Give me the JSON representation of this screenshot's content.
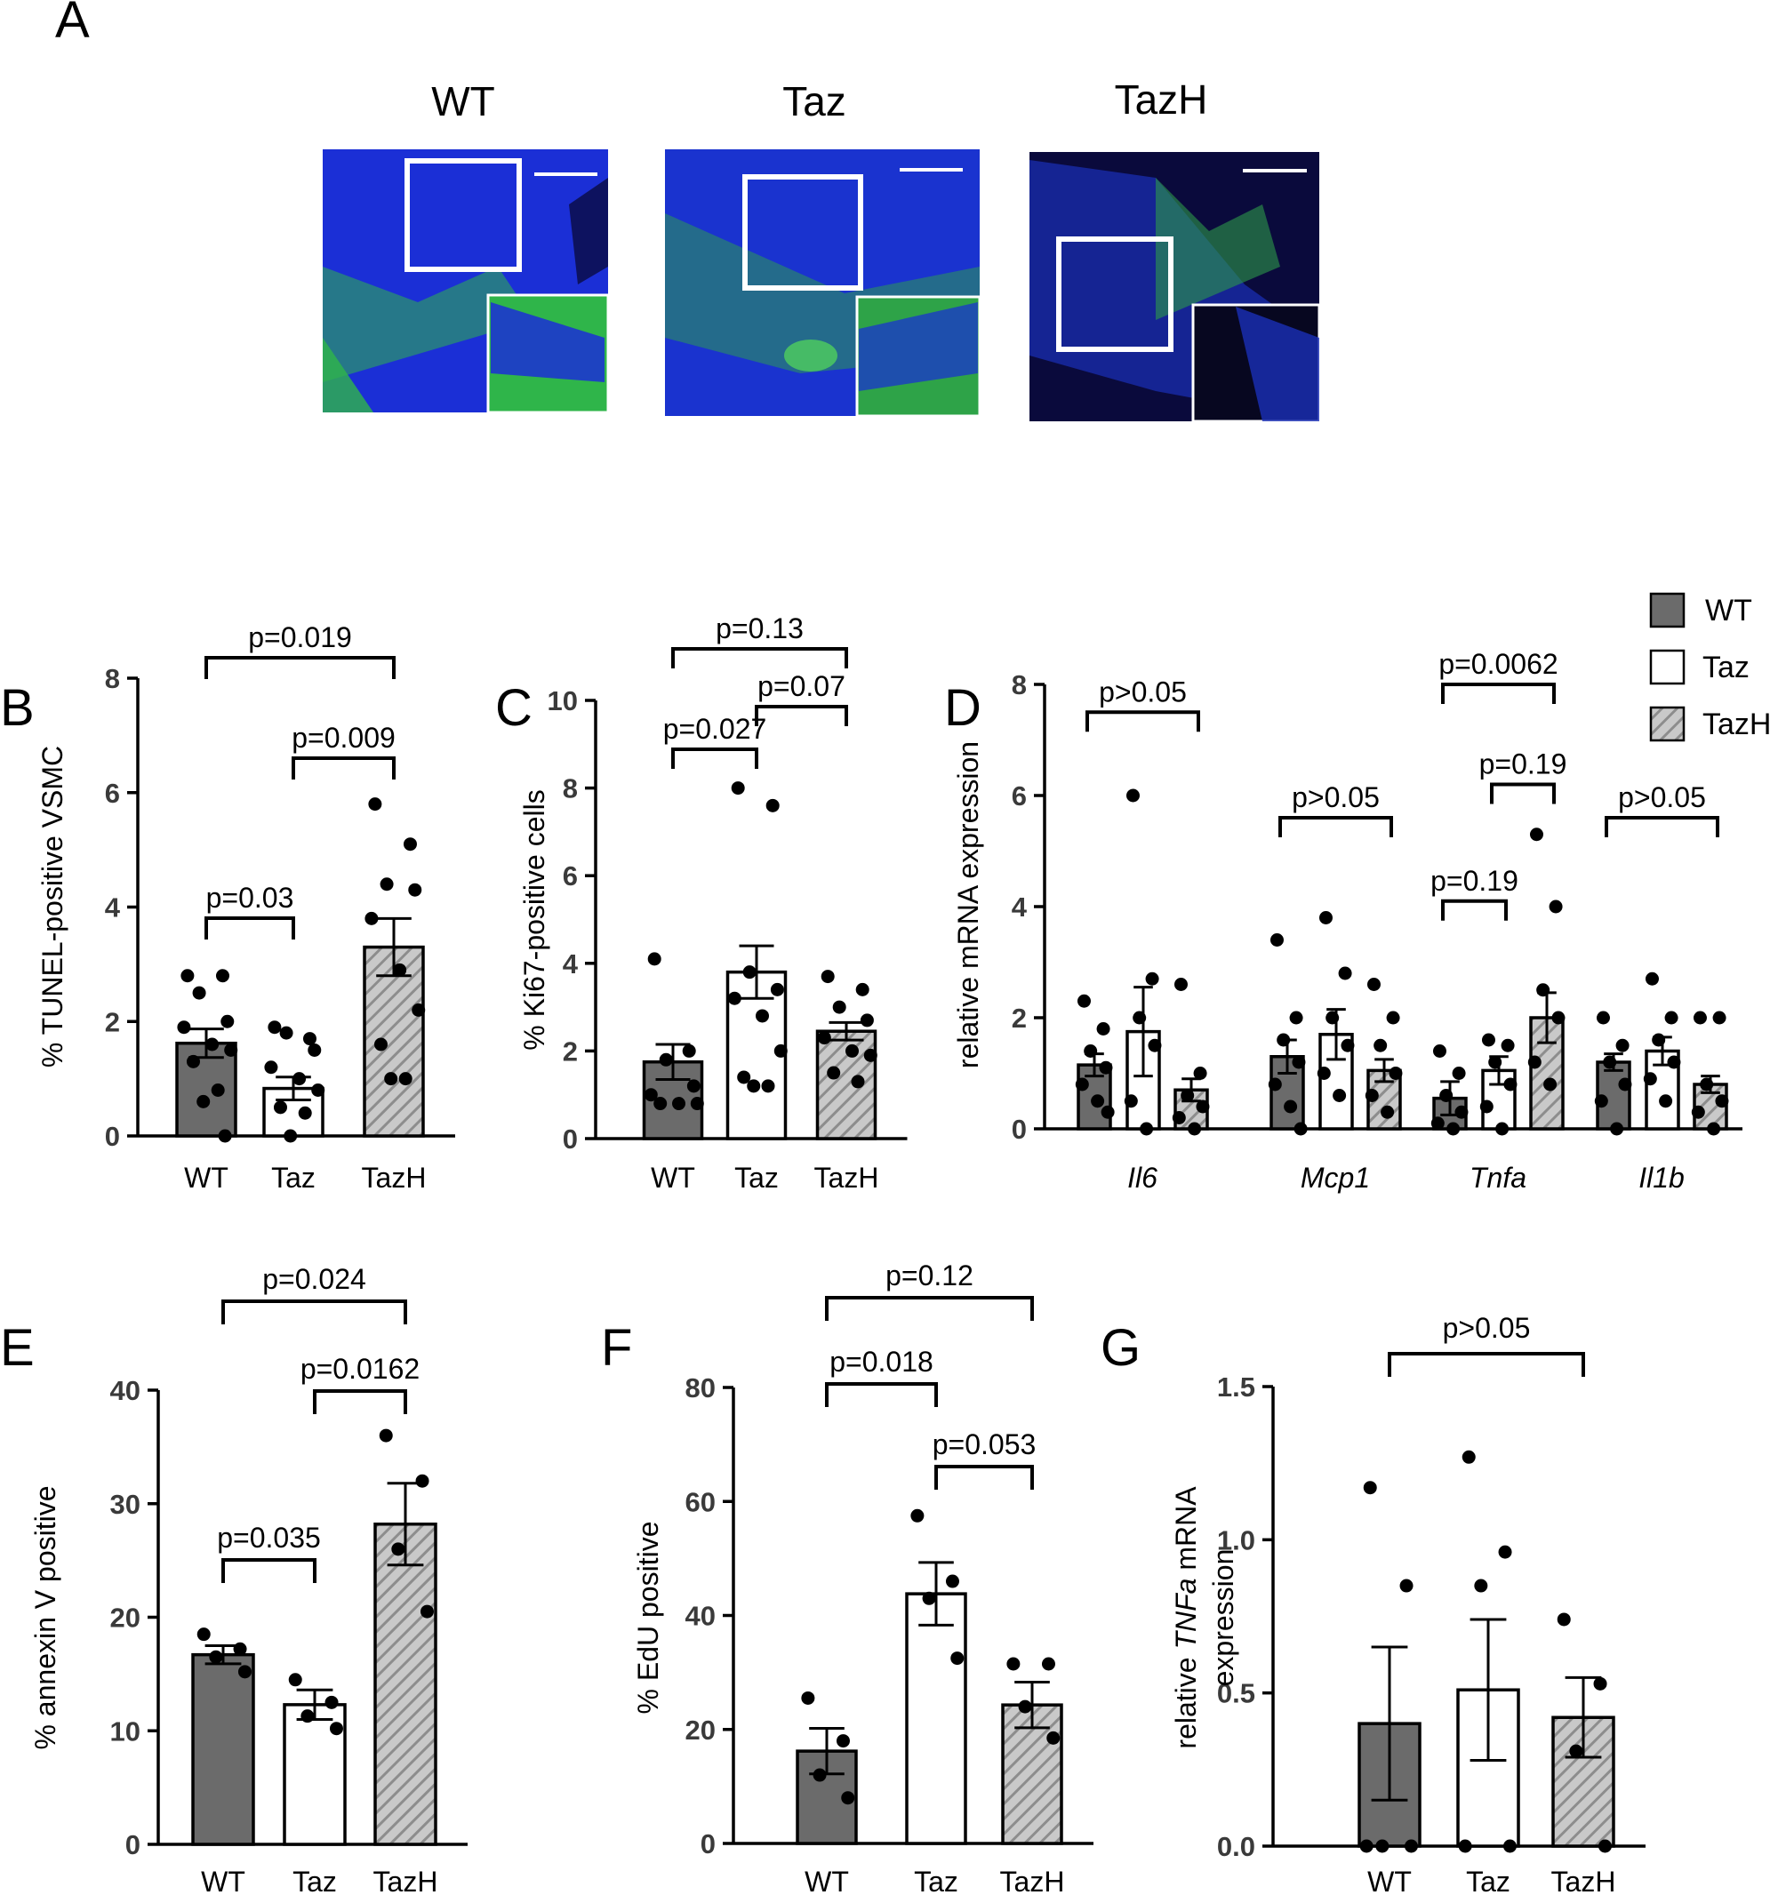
{
  "panel_a": {
    "letter": "A",
    "images": [
      {
        "label": "WT",
        "desc": "WT micrograph",
        "primary": "#1b2fd6",
        "secondary": "#2fb54a"
      },
      {
        "label": "Taz",
        "desc": "Taz micrograph",
        "primary": "#1a33cf",
        "secondary": "#2ea348"
      },
      {
        "label": "TazH",
        "desc": "TazH micrograph",
        "primary": "#0a0a3c",
        "secondary": "#2d9a4a"
      }
    ]
  },
  "legend": {
    "items": [
      {
        "label": "WT",
        "style": "dark"
      },
      {
        "label": "Taz",
        "style": "white"
      },
      {
        "label": "TazH",
        "style": "hatched"
      }
    ]
  },
  "styles": {
    "dark": "#6b6b6b",
    "white": "#ffffff",
    "hatch_bg": "#c9c9c9",
    "hatch_line": "#8d8d8d",
    "ink": "#000000"
  },
  "chart_data": [
    {
      "letter": "B",
      "type": "bar",
      "categories": [
        "WT",
        "Taz",
        "TazH"
      ],
      "styles": [
        "dark",
        "white",
        "hatched"
      ],
      "ylabel": "% TUNEL-positive VSMC",
      "ylim": [
        0,
        8
      ],
      "yticks": [
        "0",
        "2",
        "4",
        "6",
        "8"
      ],
      "values": [
        1.62,
        0.83,
        3.3
      ],
      "sem": [
        0.25,
        0.2,
        0.5
      ],
      "points": [
        [
          2.8,
          2.8,
          2.5,
          2.0,
          1.9,
          1.6,
          1.5,
          1.3,
          0.8,
          0.6,
          0.0
        ],
        [
          1.9,
          1.7,
          1.8,
          1.5,
          1.2,
          1.0,
          0.8,
          0.5,
          0.4,
          0.0
        ],
        [
          5.8,
          5.1,
          4.4,
          4.3,
          3.8,
          2.9,
          2.2,
          1.6,
          1.0,
          1.0
        ]
      ],
      "comparisons": [
        {
          "from": 0,
          "to": 2,
          "label": "p=0.019"
        },
        {
          "from": 1,
          "to": 2,
          "label": "p=0.009"
        },
        {
          "from": 0,
          "to": 1,
          "label": "p=0.03"
        }
      ]
    },
    {
      "letter": "C",
      "type": "bar",
      "categories": [
        "WT",
        "Taz",
        "TazH"
      ],
      "styles": [
        "dark",
        "white",
        "hatched"
      ],
      "ylabel": "% Ki67-positive cells",
      "ylim": [
        0,
        10
      ],
      "yticks": [
        "0",
        "2",
        "4",
        "6",
        "8",
        "10"
      ],
      "values": [
        1.75,
        3.8,
        2.45
      ],
      "sem": [
        0.4,
        0.6,
        0.2
      ],
      "points": [
        [
          4.1,
          2.0,
          1.8,
          1.2,
          1.0,
          0.8,
          0.8,
          0.8
        ],
        [
          8.0,
          7.6,
          3.8,
          3.4,
          3.2,
          2.8,
          2.0,
          1.4,
          1.2,
          1.2
        ],
        [
          3.7,
          3.4,
          3.0,
          2.7,
          2.3,
          2.0,
          1.9,
          1.5,
          1.3
        ]
      ],
      "comparisons": [
        {
          "from": 0,
          "to": 2,
          "label": "p=0.13"
        },
        {
          "from": 1,
          "to": 2,
          "label": "p=0.07"
        },
        {
          "from": 0,
          "to": 1,
          "label": "p=0.027"
        }
      ]
    },
    {
      "letter": "D",
      "type": "bar",
      "ylabel": "relative mRNA expression",
      "ylim": [
        0,
        8
      ],
      "yticks": [
        "0",
        "2",
        "4",
        "6",
        "8"
      ],
      "groups": [
        "Il6",
        "Mcp1",
        "Tnfa",
        "Il1b"
      ],
      "series": [
        {
          "name": "WT",
          "style": "dark"
        },
        {
          "name": "Taz",
          "style": "white"
        },
        {
          "name": "TazH",
          "style": "hatched"
        }
      ],
      "values": [
        [
          1.15,
          1.75,
          0.7
        ],
        [
          1.3,
          1.7,
          1.05
        ],
        [
          0.55,
          1.05,
          2.0
        ],
        [
          1.2,
          1.4,
          0.8
        ]
      ],
      "sem": [
        [
          0.2,
          0.8,
          0.2
        ],
        [
          0.3,
          0.45,
          0.2
        ],
        [
          0.3,
          0.25,
          0.45
        ],
        [
          0.15,
          0.25,
          0.15
        ]
      ],
      "points": [
        [
          [
            2.3,
            1.8,
            1.4,
            1.1,
            0.8,
            0.5,
            0.3
          ],
          [
            6.0,
            2.7,
            2.0,
            1.5,
            0.5,
            0.0
          ],
          [
            2.6,
            1.0,
            0.6,
            0.4,
            0.2,
            0.0
          ]
        ],
        [
          [
            3.4,
            2.0,
            1.6,
            1.2,
            0.8,
            0.4,
            0.0
          ],
          [
            3.8,
            2.8,
            2.0,
            1.5,
            1.0,
            0.6
          ],
          [
            2.6,
            2.0,
            1.5,
            1.0,
            0.6,
            0.3
          ]
        ],
        [
          [
            1.4,
            1.0,
            0.6,
            0.3,
            0.1,
            0.0
          ],
          [
            1.6,
            1.5,
            1.2,
            0.8,
            0.4,
            0.0
          ],
          [
            5.3,
            4.0,
            2.5,
            2.0,
            1.2,
            0.8
          ]
        ],
        [
          [
            2.0,
            1.5,
            1.2,
            0.8,
            0.5,
            0.0
          ],
          [
            2.7,
            2.0,
            1.6,
            1.2,
            0.9,
            0.5
          ],
          [
            2.0,
            2.0,
            0.8,
            0.5,
            0.3,
            0.0
          ]
        ]
      ],
      "comparisons": [
        {
          "group": 0,
          "from": 0,
          "to": 2,
          "label": "p>0.05",
          "y": 7.5
        },
        {
          "group": 1,
          "from": 0,
          "to": 2,
          "label": "p>0.05",
          "y": 5.6
        },
        {
          "group": 2,
          "from": 0,
          "to": 2,
          "label": "p=0.0062",
          "y": 8.0
        },
        {
          "group": 2,
          "from": 1,
          "to": 2,
          "label": "p=0.19",
          "y": 6.2
        },
        {
          "group": 2,
          "from": 0,
          "to": 1,
          "label": "p=0.19",
          "y": 4.1
        },
        {
          "group": 3,
          "from": 0,
          "to": 2,
          "label": "p>0.05",
          "y": 5.6
        }
      ]
    },
    {
      "letter": "E",
      "type": "bar",
      "categories": [
        "WT",
        "Taz",
        "TazH"
      ],
      "styles": [
        "dark",
        "white",
        "hatched"
      ],
      "ylabel": "% annexin V positive",
      "ylim": [
        0,
        40
      ],
      "yticks": [
        "0",
        "10",
        "20",
        "30",
        "40"
      ],
      "values": [
        16.7,
        12.3,
        28.2
      ],
      "sem": [
        0.8,
        1.3,
        3.6
      ],
      "points": [
        [
          18.5,
          17.2,
          16.5,
          15.2
        ],
        [
          14.5,
          12.5,
          11.3,
          10.2
        ],
        [
          36.0,
          32.0,
          26.0,
          20.5
        ]
      ],
      "comparisons": [
        {
          "from": 0,
          "to": 2,
          "label": "p=0.024"
        },
        {
          "from": 1,
          "to": 2,
          "label": "p=0.0162"
        },
        {
          "from": 0,
          "to": 1,
          "label": "p=0.035"
        }
      ]
    },
    {
      "letter": "F",
      "type": "bar",
      "categories": [
        "WT",
        "Taz",
        "TazH"
      ],
      "styles": [
        "dark",
        "white",
        "hatched"
      ],
      "ylabel": "% EdU positive",
      "ylim": [
        0,
        80
      ],
      "yticks": [
        "0",
        "20",
        "40",
        "60",
        "80"
      ],
      "values": [
        16.2,
        43.8,
        24.3
      ],
      "sem": [
        4.0,
        5.5,
        4.0
      ],
      "points": [
        [
          25.5,
          18.0,
          12.0,
          8.0
        ],
        [
          57.5,
          46.0,
          43.0,
          32.5
        ],
        [
          31.5,
          31.5,
          24.0,
          18.5
        ]
      ],
      "comparisons": [
        {
          "from": 0,
          "to": 2,
          "label": "p=0.12"
        },
        {
          "from": 0,
          "to": 1,
          "label": "p=0.018"
        },
        {
          "from": 1,
          "to": 2,
          "label": "p=0.053"
        }
      ]
    },
    {
      "letter": "G",
      "type": "bar",
      "categories": [
        "WT",
        "Taz",
        "TazH"
      ],
      "styles": [
        "dark",
        "white",
        "hatched"
      ],
      "ylabel_lines": [
        "relative ",
        "TNFa",
        " mRNA",
        "expression"
      ],
      "ylim": [
        0,
        1.5
      ],
      "yticks": [
        "0.0",
        "0.5",
        "1.0",
        "1.5"
      ],
      "values": [
        0.4,
        0.51,
        0.42
      ],
      "sem": [
        0.25,
        0.23,
        0.13
      ],
      "points": [
        [
          1.17,
          0.85,
          0.0,
          0.0,
          0.0
        ],
        [
          1.27,
          0.96,
          0.85,
          0.0,
          0.0
        ],
        [
          0.74,
          0.53,
          0.31,
          0.0
        ]
      ],
      "comparisons": [
        {
          "from": 0,
          "to": 2,
          "label": "p>0.05"
        }
      ]
    }
  ]
}
